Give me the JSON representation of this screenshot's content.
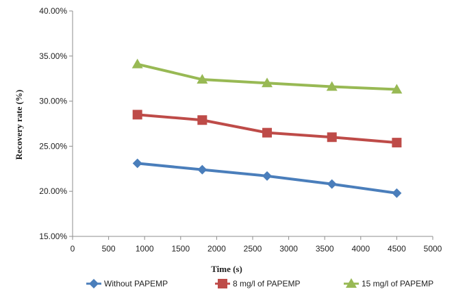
{
  "chart_data": {
    "type": "line",
    "xlabel": "Time (s)",
    "ylabel": "Recovery rate (%)",
    "xlim": [
      0,
      5000
    ],
    "ylim": [
      0.15,
      0.4
    ],
    "x_ticks": [
      "0",
      "500",
      "1000",
      "1500",
      "2000",
      "2500",
      "3000",
      "3500",
      "4000",
      "4500",
      "5000"
    ],
    "y_ticks": [
      "15.00%",
      "20.00%",
      "25.00%",
      "30.00%",
      "35.00%",
      "40.00%"
    ],
    "grid": false,
    "legend_position": "bottom",
    "x": [
      900,
      1800,
      2700,
      3600,
      4500
    ],
    "series": [
      {
        "name": "Without PAPEMP",
        "values": [
          0.231,
          0.224,
          0.217,
          0.208,
          0.198
        ],
        "color": "#4a7ebb",
        "marker": "diamond"
      },
      {
        "name": "8 mg/l of PAPEMP",
        "values": [
          0.285,
          0.279,
          0.265,
          0.26,
          0.254
        ],
        "color": "#be4b48",
        "marker": "square"
      },
      {
        "name": "15 mg/l of PAPEMP",
        "values": [
          0.341,
          0.324,
          0.32,
          0.316,
          0.313
        ],
        "color": "#98b954",
        "marker": "triangle"
      }
    ]
  }
}
